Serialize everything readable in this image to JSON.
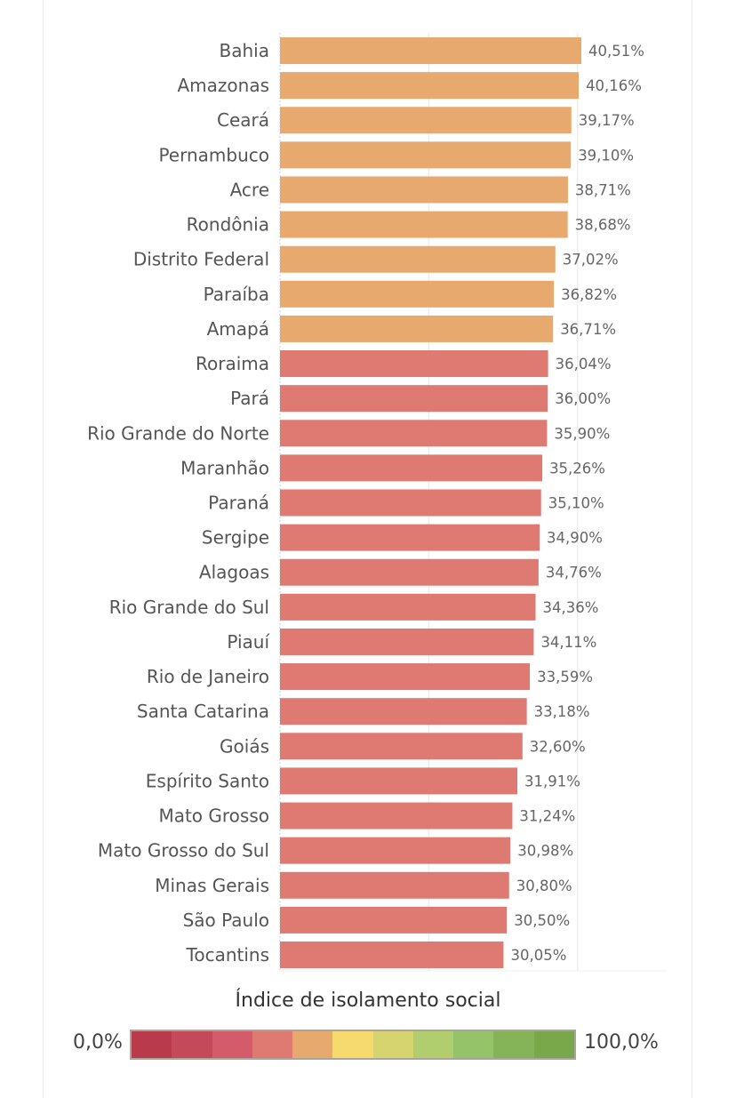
{
  "chart_data": {
    "type": "bar",
    "orientation": "horizontal",
    "categories": [
      "Bahia",
      "Amazonas",
      "Ceará",
      "Pernambuco",
      "Acre",
      "Rondônia",
      "Distrito Federal",
      "Paraíba",
      "Amapá",
      "Roraima",
      "Pará",
      "Rio Grande do Norte",
      "Maranhão",
      "Paraná",
      "Sergipe",
      "Alagoas",
      "Rio Grande do Sul",
      "Piauí",
      "Rio de Janeiro",
      "Santa Catarina",
      "Goiás",
      "Espírito Santo",
      "Mato Grosso",
      "Mato Grosso do Sul",
      "Minas Gerais",
      "São Paulo",
      "Tocantins"
    ],
    "values": [
      40.51,
      40.16,
      39.17,
      39.1,
      38.71,
      38.68,
      37.02,
      36.82,
      36.71,
      36.04,
      36.0,
      35.9,
      35.26,
      35.1,
      34.9,
      34.76,
      34.36,
      34.11,
      33.59,
      33.18,
      32.6,
      31.91,
      31.24,
      30.98,
      30.8,
      30.5,
      30.05
    ],
    "labels": [
      "40,51%",
      "40,16%",
      "39,17%",
      "39,10%",
      "38,71%",
      "38,68%",
      "37,02%",
      "36,82%",
      "36,71%",
      "36,04%",
      "36,00%",
      "35,90%",
      "35,26%",
      "35,10%",
      "34,90%",
      "34,76%",
      "34,36%",
      "34,11%",
      "33,59%",
      "33,18%",
      "32,60%",
      "31,91%",
      "31,24%",
      "30,98%",
      "30,80%",
      "30,50%",
      "30,05%"
    ],
    "xlim": [
      0,
      52
    ],
    "grid": true,
    "gridlines": [
      20,
      40
    ],
    "color_scale": {
      "title": "Índice de isolamento social",
      "min_label": "0,0%",
      "max_label": "100,0%",
      "steps": [
        "#B83A4B",
        "#C44A59",
        "#D35B6A",
        "#DE7A72",
        "#E8A96E",
        "#F7DA6E",
        "#D6D46E",
        "#B0CE6E",
        "#94C36A",
        "#85B458",
        "#78A84A"
      ]
    },
    "legend_placement": "bottom"
  }
}
